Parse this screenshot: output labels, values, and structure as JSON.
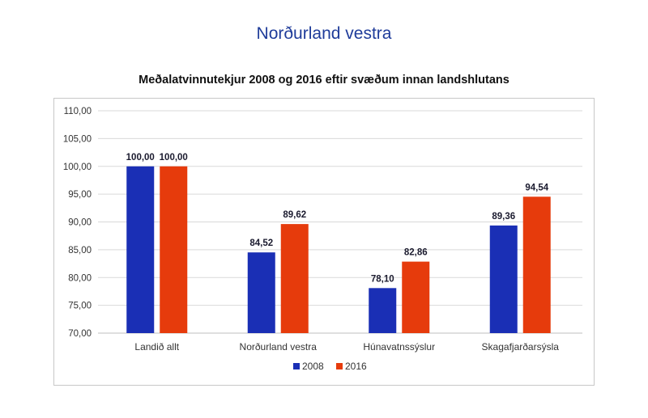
{
  "page": {
    "title": "Norðurland vestra"
  },
  "chart_data": {
    "type": "bar",
    "title": "Meðalatvinnutekjur 2008 og 2016 eftir svæðum innan landshlutans",
    "categories": [
      "Landið allt",
      "Norðurland vestra",
      "Húnavatnssýslur",
      "Skagafjarðarsýsla"
    ],
    "series": [
      {
        "name": "2008",
        "color": "#1a2fb5",
        "values": [
          100.0,
          84.52,
          78.1,
          89.36
        ],
        "labels": [
          "100,00",
          "84,52",
          "78,10",
          "89,36"
        ]
      },
      {
        "name": "2016",
        "color": "#e63b0c",
        "values": [
          100.0,
          89.62,
          82.86,
          94.54
        ],
        "labels": [
          "100,00",
          "89,62",
          "82,86",
          "94,54"
        ]
      }
    ],
    "ylim": [
      70,
      110
    ],
    "yticks": [
      70,
      75,
      80,
      85,
      90,
      95,
      100,
      105,
      110
    ],
    "ytick_labels": [
      "70,00",
      "75,00",
      "80,00",
      "85,00",
      "90,00",
      "95,00",
      "100,00",
      "105,00",
      "110,00"
    ],
    "grid": true,
    "legend": "bottom",
    "xlabel": "",
    "ylabel": ""
  }
}
